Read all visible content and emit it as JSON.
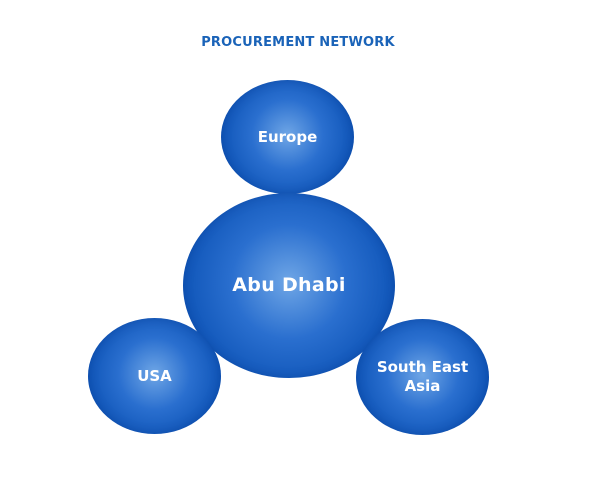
{
  "title": "PROCUREMENT NETWORK",
  "nodes": {
    "europe": "Europe",
    "abu_dhabi": "Abu Dhabi",
    "usa": "USA",
    "south_east_asia_line1": "South East",
    "south_east_asia_line2": "Asia"
  },
  "colors": {
    "title": "#1a63b8",
    "bubble_dark": "#0a4aa6",
    "bubble_light": "#6fa6e6",
    "label": "#ffffff"
  }
}
